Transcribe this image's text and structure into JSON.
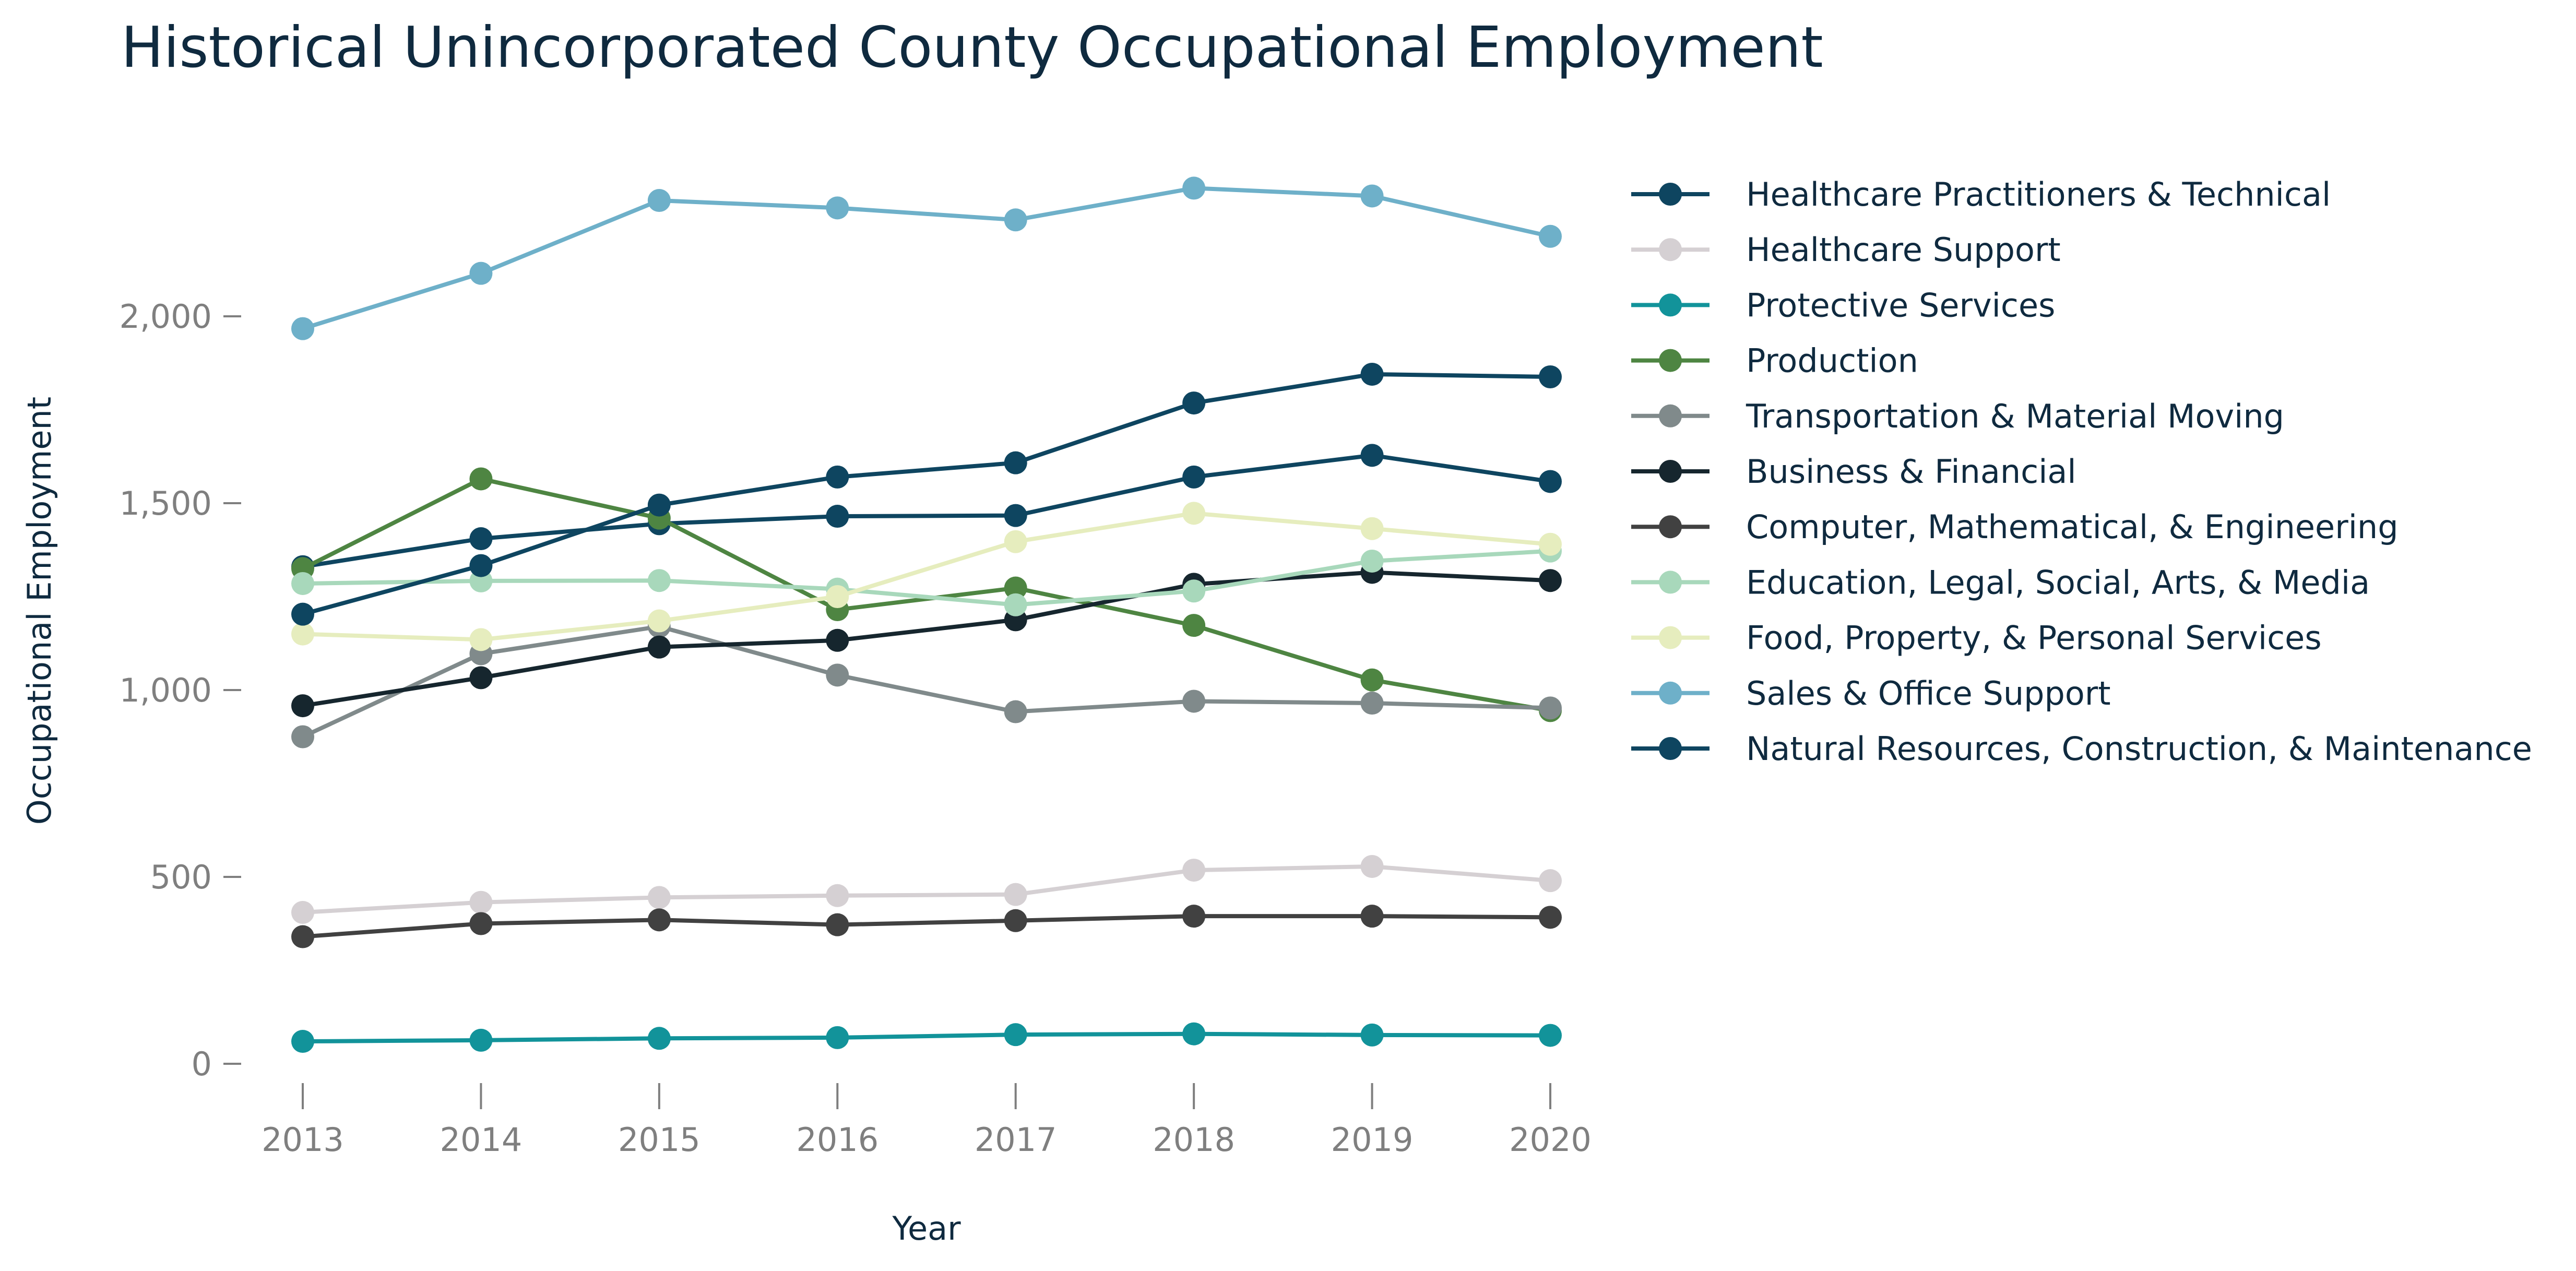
{
  "chart_data": {
    "type": "line",
    "title": "Historical Unincorporated County Occupational Employment",
    "xlabel": "Year",
    "ylabel": "Occupational Employment",
    "x": [
      "2013",
      "2014",
      "2015",
      "2016",
      "2017",
      "2018",
      "2019",
      "2020"
    ],
    "ylim": [
      0,
      2400
    ],
    "yticks": [
      0,
      500,
      1000,
      1500,
      2000
    ],
    "ytick_labels": [
      "0",
      "500",
      "1,000",
      "1,500",
      "2,000"
    ],
    "grid": false,
    "legend_position": "right",
    "series": [
      {
        "name": "Healthcare Practitioners & Technical",
        "color": "#0e4560",
        "values": [
          1330,
          1405,
          1445,
          1465,
          1467,
          1570,
          1628,
          1558
        ]
      },
      {
        "name": "Healthcare Support",
        "color": "#d5d0d3",
        "values": [
          405,
          432,
          445,
          450,
          453,
          518,
          528,
          490
        ]
      },
      {
        "name": "Protective Services",
        "color": "#12939a",
        "values": [
          60,
          63,
          68,
          70,
          78,
          80,
          77,
          76
        ]
      },
      {
        "name": "Production",
        "color": "#4e8542",
        "values": [
          1325,
          1565,
          1460,
          1215,
          1273,
          1173,
          1027,
          945
        ]
      },
      {
        "name": "Transportation & Material Moving",
        "color": "#808a8b",
        "values": [
          875,
          1097,
          1170,
          1040,
          942,
          970,
          965,
          952
        ]
      },
      {
        "name": "Business & Financial",
        "color": "#16262e",
        "values": [
          958,
          1033,
          1115,
          1133,
          1188,
          1283,
          1315,
          1293
        ]
      },
      {
        "name": "Computer, Mathematical, & Engineering",
        "color": "#414141",
        "values": [
          340,
          375,
          385,
          372,
          383,
          395,
          395,
          392
        ]
      },
      {
        "name": "Education, Legal, Social, Arts, & Media",
        "color": "#a8d8bb",
        "values": [
          1285,
          1292,
          1293,
          1270,
          1228,
          1265,
          1345,
          1372
        ]
      },
      {
        "name": "Food, Property, & Personal Services",
        "color": "#e6edbe",
        "values": [
          1150,
          1135,
          1185,
          1250,
          1397,
          1473,
          1432,
          1390
        ]
      },
      {
        "name": "Sales & Office Support",
        "color": "#6eb0c9",
        "values": [
          1967,
          2115,
          2310,
          2290,
          2258,
          2343,
          2322,
          2214
        ]
      },
      {
        "name": "Natural Resources, Construction, & Maintenance",
        "color": "#0e4560",
        "values": [
          1203,
          1333,
          1495,
          1570,
          1608,
          1768,
          1845,
          1838
        ]
      }
    ]
  }
}
